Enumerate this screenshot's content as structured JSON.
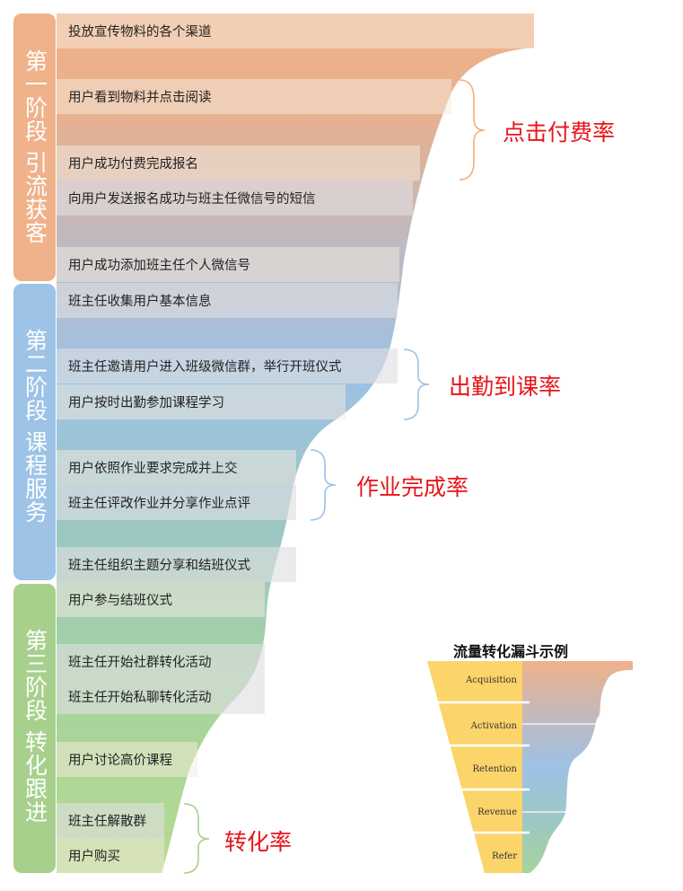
{
  "stages": [
    {
      "label": "第一阶段 引流获客",
      "color": "#efb28a"
    },
    {
      "label": "第二阶段 课程服务",
      "color": "#9dc3e6"
    },
    {
      "label": "第三阶段 转化跟进",
      "color": "#a8d08d"
    }
  ],
  "steps": [
    "投放宣传物料的各个渠道",
    "用户看到物料并点击阅读",
    "用户成功付费完成报名",
    "向用户发送报名成功与班主任微信号的短信",
    "用户成功添加班主任个人微信号",
    "班主任收集用户基本信息",
    "班主任邀请用户进入班级微信群，举行开班仪式",
    "用户按时出勤参加课程学习",
    "用户依照作业要求完成并上交",
    "班主任评改作业并分享作业点评",
    "班主任组织主题分享和结班仪式",
    "用户参与结班仪式",
    "班主任开始社群转化活动",
    "班主任开始私聊转化活动",
    "用户讨论高价课程",
    "班主任解散群",
    "用户购买"
  ],
  "rates": [
    {
      "label": "点击付费率",
      "bracket_color": "#f0b080"
    },
    {
      "label": "出勤到课率",
      "bracket_color": "#9dc3e6"
    },
    {
      "label": "作业完成率",
      "bracket_color": "#9dc3e6"
    },
    {
      "label": "转化率",
      "bracket_color": "#a8d08d"
    }
  ],
  "rate_text_color": "#e8141a",
  "inset": {
    "title": "流量转化漏斗示例",
    "levels": [
      "Acquisition",
      "Activation",
      "Retention",
      "Revenue",
      "Refer"
    ],
    "funnel_color": "#fbd46a"
  }
}
